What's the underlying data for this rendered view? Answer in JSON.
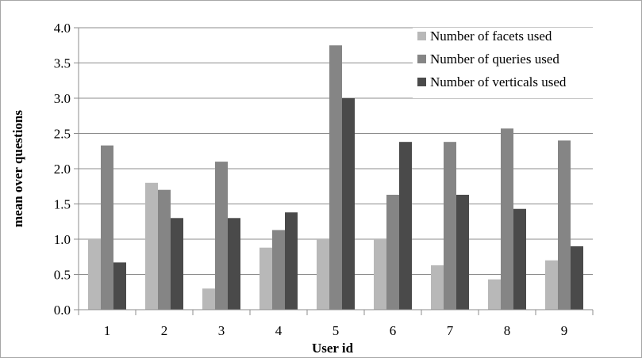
{
  "chart_data": {
    "type": "bar",
    "title": "",
    "xlabel": "User id",
    "ylabel": "mean over questions",
    "ylim": [
      0,
      4.0
    ],
    "ytick_step": 0.5,
    "ytick_labels": [
      "0.0",
      "0.5",
      "1.0",
      "1.5",
      "2.0",
      "2.5",
      "3.0",
      "3.5",
      "4.0"
    ],
    "categories": [
      "1",
      "2",
      "3",
      "4",
      "5",
      "6",
      "7",
      "8",
      "9"
    ],
    "grid": "horizontal",
    "legend_position": "top-right",
    "series": [
      {
        "name": "Number of facets used",
        "color": "#b8b8b8",
        "values": [
          1.0,
          1.8,
          0.3,
          0.88,
          1.0,
          1.0,
          0.63,
          0.43,
          0.7
        ]
      },
      {
        "name": "Number of queries used",
        "color": "#858585",
        "values": [
          2.33,
          1.7,
          2.1,
          1.13,
          3.75,
          1.63,
          2.38,
          2.57,
          2.4
        ]
      },
      {
        "name": "Number of verticals used",
        "color": "#4a4a4a",
        "values": [
          0.67,
          1.3,
          1.3,
          1.38,
          3.0,
          2.38,
          1.63,
          1.43,
          0.9
        ]
      }
    ]
  }
}
